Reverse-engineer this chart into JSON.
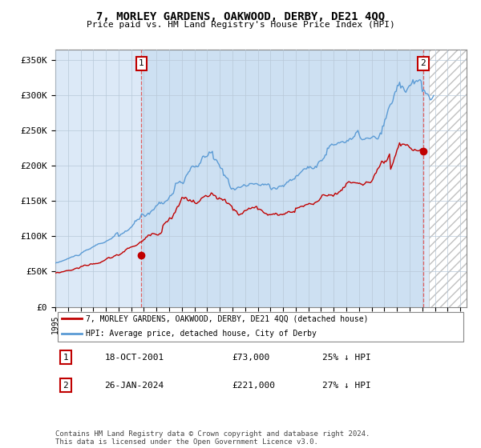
{
  "title": "7, MORLEY GARDENS, OAKWOOD, DERBY, DE21 4QQ",
  "subtitle": "Price paid vs. HM Land Registry's House Price Index (HPI)",
  "ylabel_ticks": [
    "£0",
    "£50K",
    "£100K",
    "£150K",
    "£200K",
    "£250K",
    "£300K",
    "£350K"
  ],
  "ytick_vals": [
    0,
    50000,
    100000,
    150000,
    200000,
    250000,
    300000,
    350000
  ],
  "ylim": [
    0,
    365000
  ],
  "xlim_start": 1995.0,
  "xlim_end": 2027.5,
  "sale1_date": 2001.8,
  "sale1_price": 73000,
  "sale1_label": "1",
  "sale2_date": 2024.07,
  "sale2_price": 221000,
  "sale2_label": "2",
  "hpi_color": "#5b9bd5",
  "price_color": "#c00000",
  "bg_color": "#ffffff",
  "chart_bg_color": "#dce9f7",
  "grid_color": "#b8c8d8",
  "hatch_color": "#c0c0c0",
  "legend_label1": "7, MORLEY GARDENS, OAKWOOD, DERBY, DE21 4QQ (detached house)",
  "legend_label2": "HPI: Average price, detached house, City of Derby",
  "annotation1_date": "18-OCT-2001",
  "annotation1_price": "£73,000",
  "annotation1_hpi": "25% ↓ HPI",
  "annotation2_date": "26-JAN-2024",
  "annotation2_price": "£221,000",
  "annotation2_hpi": "27% ↓ HPI",
  "footer": "Contains HM Land Registry data © Crown copyright and database right 2024.\nThis data is licensed under the Open Government Licence v3.0.",
  "label_box_color": "#c00000",
  "dashed_line_color": "#e06060"
}
